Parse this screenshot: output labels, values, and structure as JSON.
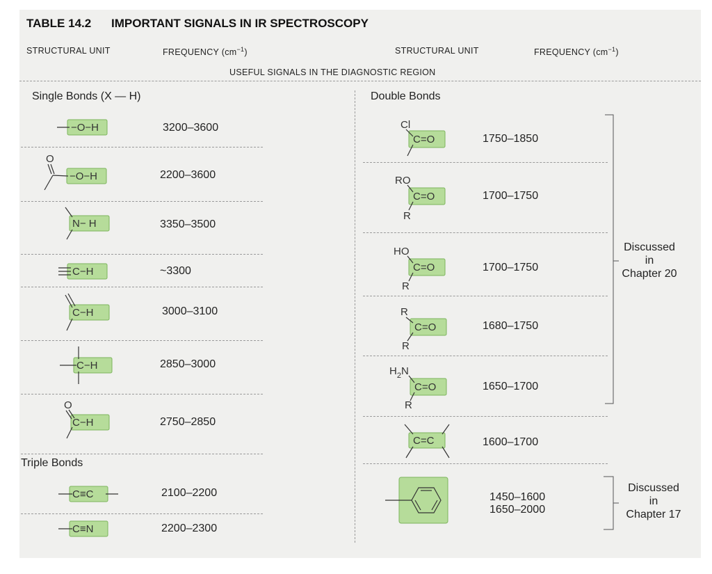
{
  "table": {
    "number": "TABLE 14.2",
    "title": "IMPORTANT SIGNALS IN IR SPECTROSCOPY"
  },
  "headers": {
    "left_unit": "STRUCTURAL UNIT",
    "left_freq": "FREQUENCY (cm",
    "right_unit": "STRUCTURAL UNIT",
    "right_freq": "FREQUENCY (cm",
    "freq_sup": "−1",
    "freq_close": ")",
    "region": "USEFUL SIGNALS IN THE DIAGNOSTIC REGION"
  },
  "sections": {
    "single": "Single Bonds (X — H)",
    "triple": "Triple Bonds",
    "double": "Double Bonds"
  },
  "left_rows": [
    {
      "unit": "alcohol O–H",
      "frequency": "3200–3600"
    },
    {
      "unit": "carboxylic acid O–H",
      "frequency": "2200–3600"
    },
    {
      "unit": "amine N–H",
      "frequency": "3350–3500"
    },
    {
      "unit": "alkyne C–H",
      "frequency": "~3300"
    },
    {
      "unit": "alkene C–H",
      "frequency": "3000–3100"
    },
    {
      "unit": "alkane C–H",
      "frequency": "2850–3000"
    },
    {
      "unit": "aldehyde C–H",
      "frequency": "2750–2850"
    },
    {
      "unit": "alkyne C≡C",
      "frequency": "2100–2200"
    },
    {
      "unit": "nitrile C≡N",
      "frequency": "2200–2300"
    }
  ],
  "right_rows": [
    {
      "unit": "acid chloride C=O",
      "frequency": "1750–1850"
    },
    {
      "unit": "ester C=O",
      "frequency": "1700–1750"
    },
    {
      "unit": "carboxylic acid C=O",
      "frequency": "1700–1750"
    },
    {
      "unit": "ketone C=O",
      "frequency": "1680–1750"
    },
    {
      "unit": "amide C=O",
      "frequency": "1650–1700"
    },
    {
      "unit": "alkene C=C",
      "frequency": "1600–1700"
    },
    {
      "unit": "aromatic ring",
      "frequency": "1450–1600",
      "frequency2": "1650–2000"
    }
  ],
  "brackets": {
    "ch20": {
      "line1": "Discussed",
      "line2": "in",
      "line3": "Chapter 20"
    },
    "ch17": {
      "line1": "Discussed",
      "line2": "in",
      "line3": "Chapter 17"
    }
  },
  "atoms": {
    "O": "O",
    "H": "H",
    "N": "N",
    "C": "C",
    "Cl": "Cl",
    "RO": "RO",
    "HO": "HO",
    "R": "R",
    "H2N": "H",
    "sub2": "2",
    "N_amide": "N",
    "O_bond": "−O−H",
    "NH": "N− H",
    "CH": "C−H",
    "CO": "C=O",
    "CC": "C=C",
    "CtC": "C≡C",
    "CtN": "C≡N"
  },
  "colors": {
    "highlight": "#b6dc9a",
    "highlight_border": "#7cb55c",
    "card_bg": "#f0f0ee"
  }
}
